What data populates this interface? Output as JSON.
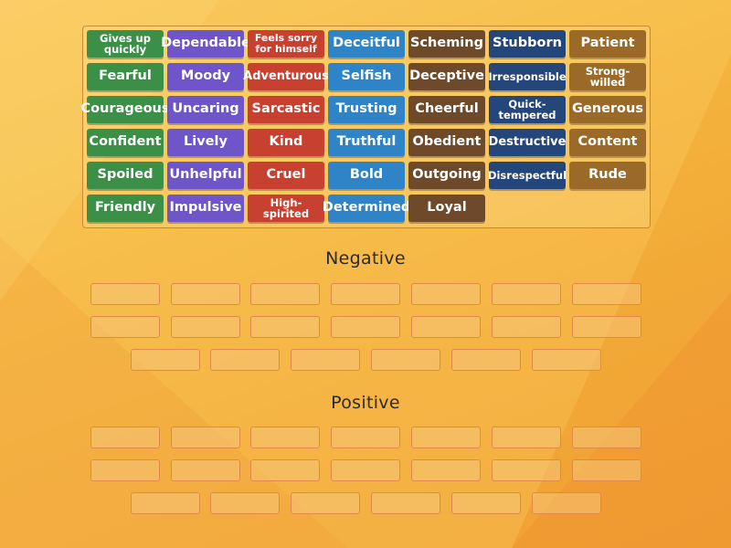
{
  "bank": {
    "tiles": [
      {
        "label": "Gives up quickly",
        "color": "#3b8f47"
      },
      {
        "label": "Dependable",
        "color": "#6e55c9"
      },
      {
        "label": "Feels sorry for himself",
        "color": "#c8402f"
      },
      {
        "label": "Deceitful",
        "color": "#2f84c8"
      },
      {
        "label": "Scheming",
        "color": "#6e4a2a"
      },
      {
        "label": "Stubborn",
        "color": "#25467a"
      },
      {
        "label": "Patient",
        "color": "#9c6a28"
      },
      {
        "label": "Fearful",
        "color": "#3b8f47"
      },
      {
        "label": "Moody",
        "color": "#6e55c9"
      },
      {
        "label": "Adventurous",
        "color": "#c8402f"
      },
      {
        "label": "Selfish",
        "color": "#2f84c8"
      },
      {
        "label": "Deceptive",
        "color": "#6e4a2a"
      },
      {
        "label": "Irresponsible",
        "color": "#25467a"
      },
      {
        "label": "Strong-willed",
        "color": "#9c6a28"
      },
      {
        "label": "Courageous",
        "color": "#3b8f47"
      },
      {
        "label": "Uncaring",
        "color": "#6e55c9"
      },
      {
        "label": "Sarcastic",
        "color": "#c8402f"
      },
      {
        "label": "Trusting",
        "color": "#2f84c8"
      },
      {
        "label": "Cheerful",
        "color": "#6e4a2a"
      },
      {
        "label": "Quick-tempered",
        "color": "#25467a"
      },
      {
        "label": "Generous",
        "color": "#9c6a28"
      },
      {
        "label": "Confident",
        "color": "#3b8f47"
      },
      {
        "label": "Lively",
        "color": "#6e55c9"
      },
      {
        "label": "Kind",
        "color": "#c8402f"
      },
      {
        "label": "Truthful",
        "color": "#2f84c8"
      },
      {
        "label": "Obedient",
        "color": "#6e4a2a"
      },
      {
        "label": "Destructive",
        "color": "#25467a"
      },
      {
        "label": "Content",
        "color": "#9c6a28"
      },
      {
        "label": "Spoiled",
        "color": "#3b8f47"
      },
      {
        "label": "Unhelpful",
        "color": "#6e55c9"
      },
      {
        "label": "Cruel",
        "color": "#c8402f"
      },
      {
        "label": "Bold",
        "color": "#2f84c8"
      },
      {
        "label": "Outgoing",
        "color": "#6e4a2a"
      },
      {
        "label": "Disrespectful",
        "color": "#25467a"
      },
      {
        "label": "Rude",
        "color": "#9c6a28"
      },
      {
        "label": "Friendly",
        "color": "#3b8f47"
      },
      {
        "label": "Impulsive",
        "color": "#6e55c9"
      },
      {
        "label": "High-spirited",
        "color": "#c8402f"
      },
      {
        "label": "Determined",
        "color": "#2f84c8"
      },
      {
        "label": "Loyal",
        "color": "#6e4a2a"
      }
    ]
  },
  "groups": [
    {
      "title": "Negative",
      "slot_count": 20
    },
    {
      "title": "Positive",
      "slot_count": 20
    }
  ],
  "colors": {
    "background": "#f4b63f",
    "slot_border": "#e08a4a"
  }
}
